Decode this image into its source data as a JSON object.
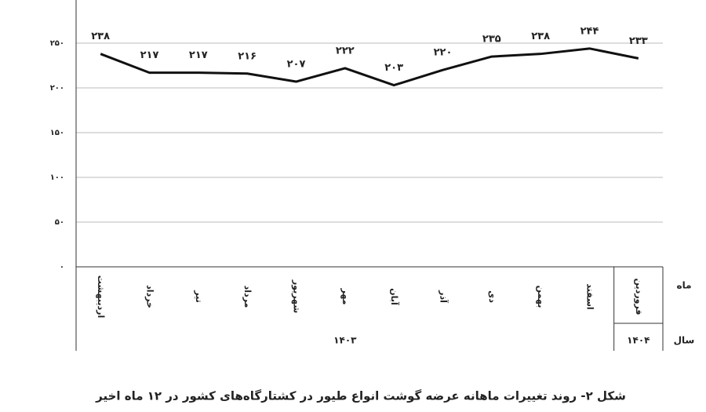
{
  "chart_data": {
    "type": "line",
    "caption": "شکل ۲- روند تغییرات ماهانه عرضه گوشت انواع طیور در کشتارگاه‌های کشور در ۱۲ ماه اخیر",
    "categories": [
      "اردیبهشت",
      "خرداد",
      "تیر",
      "مرداد",
      "شهریور",
      "مهر",
      "آبان",
      "آذر",
      "دی",
      "بهمن",
      "اسفند",
      "فروردین"
    ],
    "x_group_labels": [
      "۱۴۰۳",
      "۱۴۰۴"
    ],
    "x_row_labels": [
      "ماه",
      "سال"
    ],
    "values": [
      238,
      217,
      217,
      216,
      207,
      222,
      203,
      220,
      235,
      238,
      244,
      233
    ],
    "value_labels": [
      "۲۳۸",
      "۲۱۷",
      "۲۱۷",
      "۲۱۶",
      "۲۰۷",
      "۲۲۲",
      "۲۰۳",
      "۲۲۰",
      "۲۳۵",
      "۲۳۸",
      "۲۴۴",
      "۲۳۳"
    ],
    "color": "#111111",
    "ylim": [
      0,
      300
    ],
    "yticks": [
      {
        "value": 0,
        "label": "۰"
      },
      {
        "value": 50,
        "label": "۵۰"
      },
      {
        "value": 100,
        "label": "۱۰۰"
      },
      {
        "value": 150,
        "label": "۱۵۰"
      },
      {
        "value": 200,
        "label": "۲۰۰"
      },
      {
        "value": 250,
        "label": "۲۵۰"
      }
    ],
    "grid": true
  }
}
